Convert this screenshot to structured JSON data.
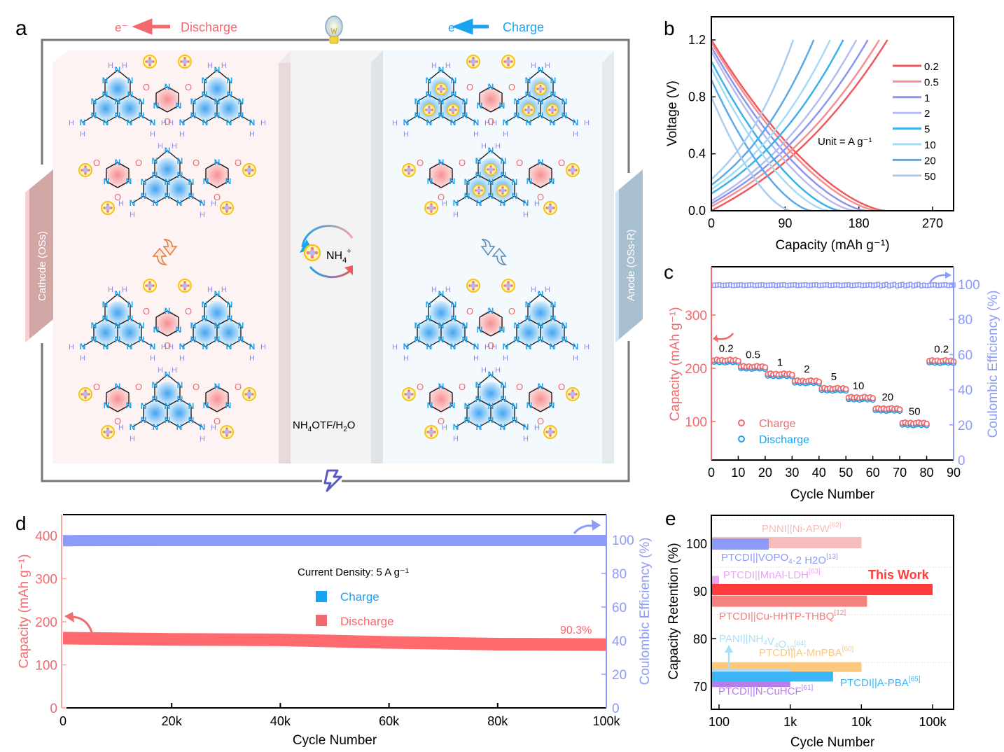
{
  "panel_labels": {
    "a": "a",
    "b": "b",
    "c": "c",
    "d": "d",
    "e": "e"
  },
  "colors": {
    "red": "#f06a6e",
    "pink_light": "#f8c4c4",
    "blue": "#1aa3f0",
    "lavender": "#8c9bf7",
    "cathode_plate": "#d3a6a6",
    "anode_plate": "#a8bfcf"
  },
  "schematic": {
    "discharge_label": "Discharge",
    "charge_label": "Charge",
    "electron_label": "e⁻",
    "cathode_label": "Cathode (OSs)",
    "anode_label": "Anode (OSs-R)",
    "ion_label_main": "NH",
    "ion_label_sub": "4",
    "ion_label_sup": "+",
    "electrolyte_label": "NH4OTF/H2O",
    "electrolyte_parts": [
      "NH",
      "4",
      "OTF/H",
      "2",
      "O"
    ],
    "icons": [
      "light-bulb-icon",
      "lightning-icon",
      "swap-arrows-icon",
      "cycle-arrows-icon",
      "ammonium-ion-icon"
    ]
  },
  "chart_data": [
    {
      "id": "b",
      "type": "line",
      "title": "",
      "xlabel": "Capacity (mAh g⁻¹)",
      "ylabel": "Voltage (V)",
      "xlim": [
        0,
        300
      ],
      "ylim": [
        0,
        1.3
      ],
      "xticks": [
        "0",
        "90",
        "180",
        "270"
      ],
      "yticks": [
        "0.0",
        "0.4",
        "0.8",
        "1.2"
      ],
      "legend_position": "right",
      "annotation": "Unit = A g⁻¹",
      "series": [
        {
          "name": "0.2",
          "color": "#f0585c",
          "charge_capacity": 215,
          "discharge_capacity": 212,
          "charge_start_v": 0.0,
          "discharge_start_v": 1.2
        },
        {
          "name": "0.5",
          "color": "#f58f90",
          "charge_capacity": 205,
          "discharge_capacity": 203,
          "charge_start_v": 0.03,
          "discharge_start_v": 1.18
        },
        {
          "name": "1",
          "color": "#8a96ef",
          "charge_capacity": 191,
          "discharge_capacity": 189,
          "charge_start_v": 0.05,
          "discharge_start_v": 1.15
        },
        {
          "name": "2",
          "color": "#b6bcf3",
          "charge_capacity": 177,
          "discharge_capacity": 175,
          "charge_start_v": 0.07,
          "discharge_start_v": 1.12
        },
        {
          "name": "5",
          "color": "#3bb0ee",
          "charge_capacity": 161,
          "discharge_capacity": 158,
          "charge_start_v": 0.12,
          "discharge_start_v": 1.05
        },
        {
          "name": "10",
          "color": "#a3dcf6",
          "charge_capacity": 145,
          "discharge_capacity": 143,
          "charge_start_v": 0.15,
          "discharge_start_v": 1.0
        },
        {
          "name": "20",
          "color": "#5aa9ea",
          "charge_capacity": 125,
          "discharge_capacity": 122,
          "charge_start_v": 0.18,
          "discharge_start_v": 0.92
        },
        {
          "name": "50",
          "color": "#a9cdf0",
          "charge_capacity": 100,
          "discharge_capacity": 97,
          "charge_start_v": 0.22,
          "discharge_start_v": 0.8
        }
      ]
    },
    {
      "id": "c",
      "type": "scatter",
      "xlabel": "Cycle Number",
      "ylabel": "Capacity (mAh g⁻¹)",
      "ylabel_right": "Coulombic Efficiency (%)",
      "xlim": [
        0,
        90
      ],
      "ylim": [
        30,
        385
      ],
      "ylim_right": [
        0,
        110
      ],
      "xticks": [
        "0",
        "10",
        "20",
        "30",
        "40",
        "50",
        "60",
        "70",
        "80",
        "90"
      ],
      "yticks": [
        "100",
        "200",
        "300"
      ],
      "yticks_right": [
        "0",
        "20",
        "40",
        "60",
        "80",
        "100"
      ],
      "legend": [
        {
          "name": "Charge",
          "color": "#f0585c"
        },
        {
          "name": "Discharge",
          "color": "#1aa3f0"
        }
      ],
      "legend_position": "bottom-left",
      "rate_segments": [
        {
          "label": "0.2",
          "cycles": [
            1,
            10
          ],
          "capacity": 215
        },
        {
          "label": "0.5",
          "cycles": [
            11,
            20
          ],
          "capacity": 203
        },
        {
          "label": "1",
          "cycles": [
            21,
            30
          ],
          "capacity": 189
        },
        {
          "label": "2",
          "cycles": [
            31,
            40
          ],
          "capacity": 176
        },
        {
          "label": "5",
          "cycles": [
            41,
            50
          ],
          "capacity": 162
        },
        {
          "label": "10",
          "cycles": [
            51,
            60
          ],
          "capacity": 145
        },
        {
          "label": "20",
          "cycles": [
            61,
            70
          ],
          "capacity": 124
        },
        {
          "label": "50",
          "cycles": [
            71,
            80
          ],
          "capacity": 97
        },
        {
          "label": "0.2",
          "cycles": [
            81,
            90
          ],
          "capacity": 214
        }
      ],
      "coulombic_efficiency": 99.5
    },
    {
      "id": "d",
      "type": "line",
      "xlabel": "Cycle Number",
      "ylabel": "Capacity (mAh g⁻¹)",
      "ylabel_right": "Coulombic Efficiency (%)",
      "xlim": [
        0,
        100000
      ],
      "ylim": [
        0,
        450
      ],
      "ylim_right": [
        0,
        110
      ],
      "xticks": [
        "0",
        "20k",
        "40k",
        "60k",
        "80k",
        "100k"
      ],
      "yticks": [
        "0",
        "100",
        "200",
        "300",
        "400"
      ],
      "yticks_right": [
        "0",
        "20",
        "40",
        "60",
        "80",
        "100"
      ],
      "legend_title": "Current Density: 5 A g⁻¹",
      "legend": [
        {
          "name": "Charge",
          "color": "#1aa3f0"
        },
        {
          "name": "Discharge",
          "color": "#f06a6e"
        }
      ],
      "legend_position": "center",
      "annotation": "90.3%",
      "x": [
        0,
        20000,
        40000,
        60000,
        80000,
        100000
      ],
      "series": [
        {
          "name": "Capacity",
          "values": [
            162,
            159,
            158,
            152,
            148,
            147
          ]
        },
        {
          "name": "Coulombic Efficiency",
          "values": [
            99.5,
            99.6,
            99.6,
            99.6,
            99.6,
            99.6
          ]
        }
      ]
    },
    {
      "id": "e",
      "type": "bar",
      "orientation": "horizontal",
      "xlabel": "Cycle Number",
      "ylabel": "Capacity Retention (%)",
      "xscale": "log",
      "xlim": [
        75,
        200000
      ],
      "ylim": [
        65,
        106
      ],
      "xticks": [
        "100",
        "1k",
        "10k",
        "100k"
      ],
      "yticks": [
        "70",
        "80",
        "90",
        "100"
      ],
      "bars": [
        {
          "label": "PNNI||Ni-APW",
          "ref": "[62]",
          "cycles": 10000,
          "retention": 100,
          "color": "#f7bcbc"
        },
        {
          "label": "PTCDI||VOPO4·2 H2O",
          "ref": "[13]",
          "cycles": 500,
          "retention": 100,
          "color": "#8c9bf7"
        },
        {
          "label": "PTCDI||MnAl-LDH",
          "ref": "[63]",
          "cycles": 100,
          "retention": 92,
          "color": "#e6a8f0"
        },
        {
          "label": "This Work",
          "ref": "",
          "cycles": 100000,
          "retention": 90.3,
          "color": "#ff3b3b"
        },
        {
          "label": "PTCDI||Cu-HHTP-THBQ",
          "ref": "[12]",
          "cycles": 12000,
          "retention": 88,
          "color": "#f7807f"
        },
        {
          "label": "PANI||NH4V4O10",
          "ref": "[64]",
          "cycles": 1000,
          "retention": 73,
          "color": "#a9def7"
        },
        {
          "label": "PTCDI||A-MnPBA",
          "ref": "[60]",
          "cycles": 10000,
          "retention": 74,
          "color": "#fbc87d"
        },
        {
          "label": "PTCDI||A-PBA",
          "ref": "[65]",
          "cycles": 4000,
          "retention": 72,
          "color": "#3cb5f5"
        },
        {
          "label": "PTCDI||N-CuHCF",
          "ref": "[61]",
          "cycles": 1000,
          "retention": 71,
          "color": "#b77de8"
        }
      ]
    }
  ]
}
